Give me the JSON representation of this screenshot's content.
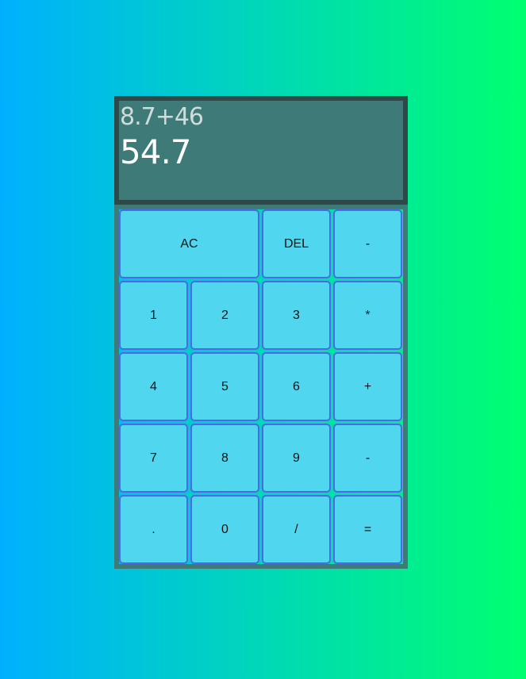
{
  "display": {
    "previous": "8.7+46",
    "current": "54.7"
  },
  "keys": [
    "AC",
    "DEL",
    "-",
    "1",
    "2",
    "3",
    "*",
    "4",
    "5",
    "6",
    "+",
    "7",
    "8",
    "9",
    "-",
    ".",
    "0",
    "/",
    "="
  ],
  "colors": {
    "background_start": "#00b0ff",
    "background_end": "#00ff70",
    "display_bg": "#3e7a78",
    "display_border": "#2e4a48",
    "key_bg": "#50d6ee",
    "key_border": "#4f66ee"
  }
}
